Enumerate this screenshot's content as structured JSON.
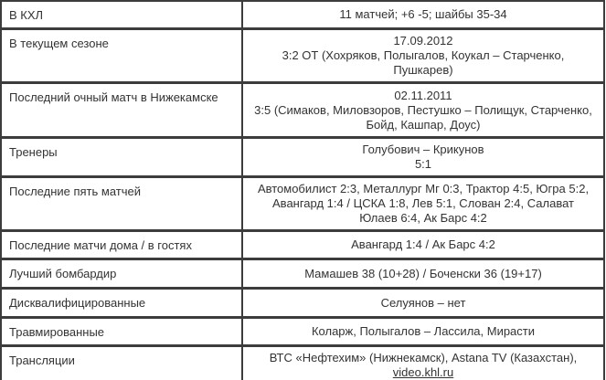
{
  "colors": {
    "border": "#3c3c3c",
    "text": "#333333",
    "background": "#ffffff"
  },
  "table": {
    "rows": [
      {
        "label": "В КХЛ",
        "value_lines": [
          "11 матчей; +6 -5; шайбы 35-34"
        ]
      },
      {
        "label": "В текущем сезоне",
        "value_lines": [
          "17.09.2012",
          "3:2 ОТ (Хохряков, Полыгалов, Коукал – Старченко, Пушкарев)"
        ]
      },
      {
        "label": "Последний очный матч в Нижекамске",
        "value_lines": [
          "02.11.2011",
          "3:5 (Симаков, Миловзоров, Пестушко – Полищук, Старченко, Бойд, Кашпар, Доус)"
        ]
      },
      {
        "label": "Тренеры",
        "value_lines": [
          "Голубович – Крикунов",
          "5:1"
        ]
      },
      {
        "label": "Последние пять матчей",
        "value_lines": [
          "Автомобилист 2:3, Металлург Мг 0:3, Трактор 4:5, Югра 5:2, Авангард 1:4 / ЦСКА 1:8, Лев 5:1, Слован 2:4, Салават Юлаев 6:4, Ак Барс 4:2"
        ]
      },
      {
        "label": "Последние матчи дома / в гостях",
        "value_lines": [
          "Авангард 1:4 / Ак Барс 4:2"
        ]
      },
      {
        "label": "Лучший бомбардир",
        "value_lines": [
          "Мамашев 38 (10+28) / Боченски 36 (19+17)"
        ]
      },
      {
        "label": "Дисквалифицированные",
        "value_lines": [
          "Селуянов – нет"
        ]
      },
      {
        "label": "Травмированные",
        "value_lines": [
          "Коларж, Полыгалов – Лассила, Мирасти"
        ]
      },
      {
        "label": "Трансляции",
        "value_lines": [
          "ВТС «Нефтехим» (Нижнекамск), Astana TV (Казахстан), "
        ],
        "link": "video.khl.ru"
      }
    ]
  }
}
